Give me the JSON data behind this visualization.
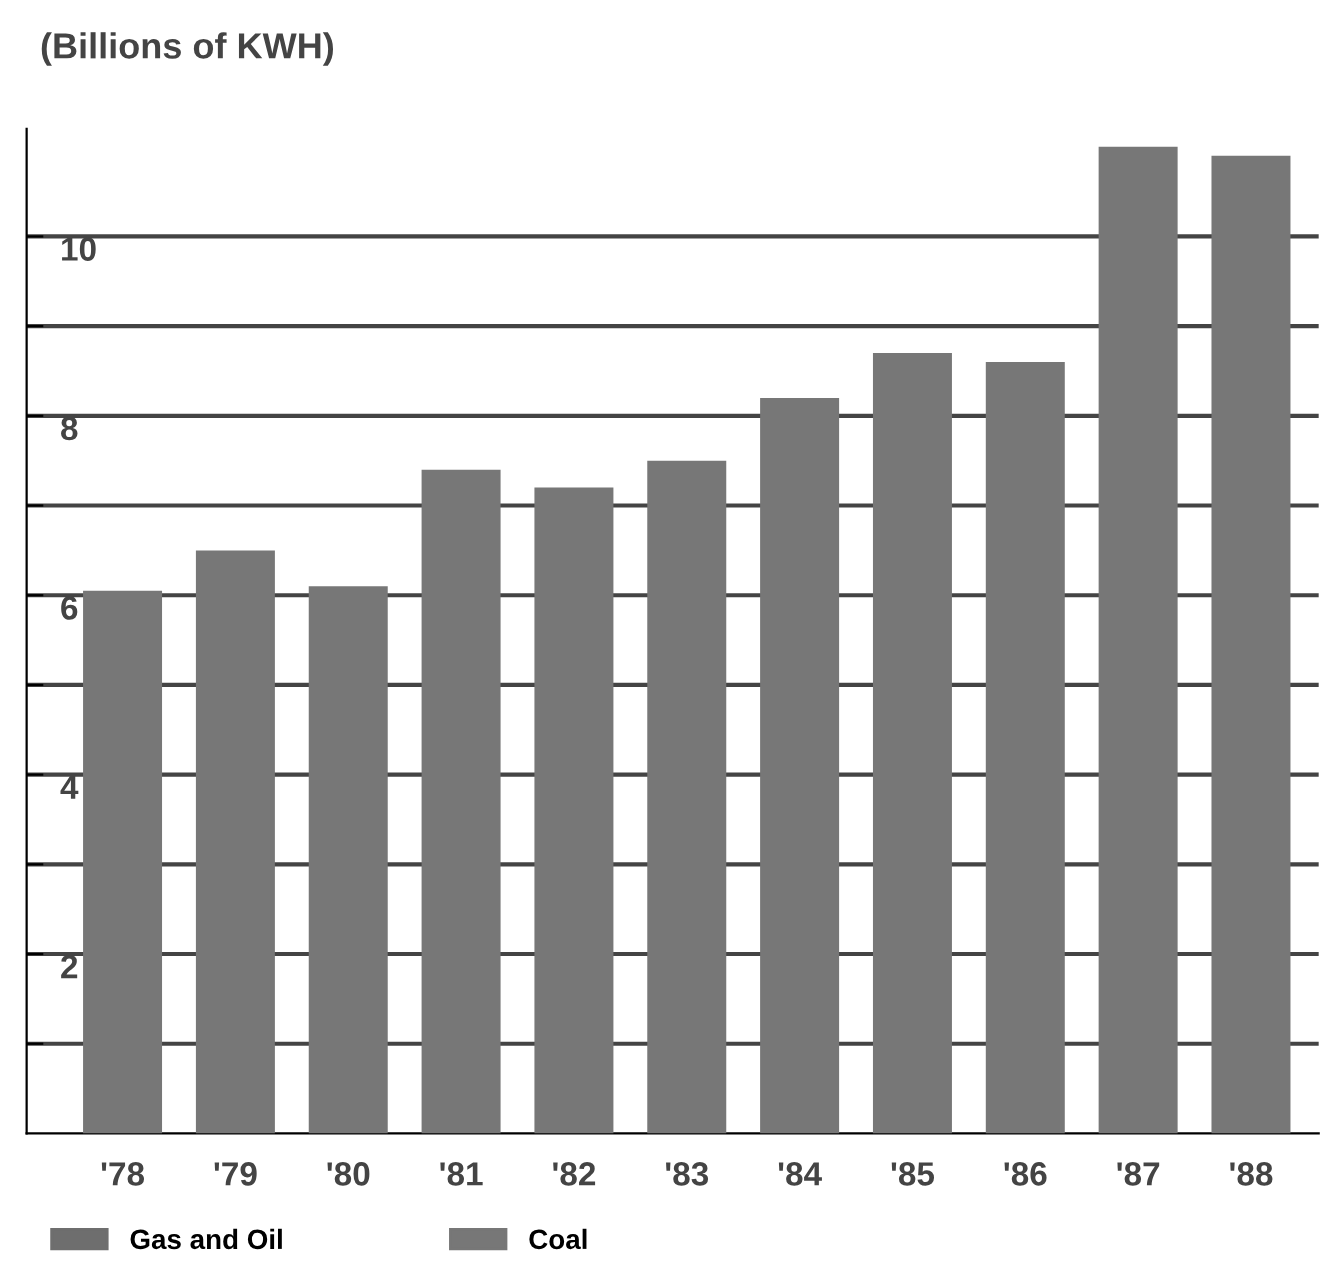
{
  "chart_data": {
    "type": "bar",
    "subtitle": "(Billions of KWH)",
    "categories": [
      "'78",
      "'79",
      "'80",
      "'81",
      "'82",
      "'83",
      "'84",
      "'85",
      "'86",
      "'87",
      "'88"
    ],
    "series": [
      {
        "name": "Gas and Oil",
        "color": "#6e6e6e",
        "values": [
          null,
          null,
          null,
          null,
          null,
          null,
          null,
          null,
          null,
          null,
          null
        ]
      },
      {
        "name": "Coal",
        "color": "#777777",
        "values": [
          6.05,
          6.5,
          6.1,
          7.4,
          7.2,
          7.5,
          8.2,
          8.7,
          8.6,
          11.0,
          10.9
        ]
      }
    ],
    "ylim": [
      0,
      11.2
    ],
    "yticks": [
      {
        "value": 1,
        "label": null
      },
      2,
      {
        "value": 3,
        "label": null
      },
      4,
      {
        "value": 5,
        "label": null
      },
      6,
      {
        "value": 7,
        "label": null
      },
      8,
      {
        "value": 9,
        "label": null
      },
      10
    ],
    "grid": "y",
    "legend": "bottom left"
  }
}
